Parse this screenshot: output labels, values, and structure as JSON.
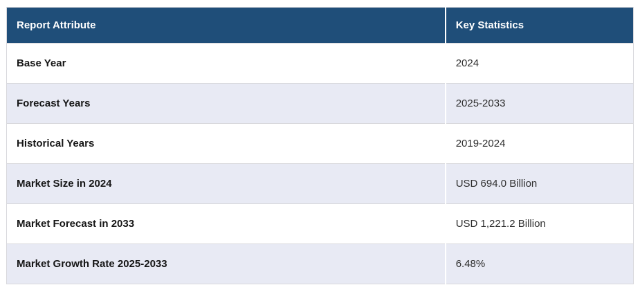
{
  "table": {
    "columns": [
      {
        "label": "Report Attribute"
      },
      {
        "label": "Key Statistics"
      }
    ],
    "rows": [
      {
        "attribute": "Base Year",
        "value": "2024"
      },
      {
        "attribute": "Forecast Years",
        "value": "2025-2033"
      },
      {
        "attribute": "Historical Years",
        "value": "2019-2024"
      },
      {
        "attribute": "Market Size in 2024",
        "value": "USD 694.0 Billion"
      },
      {
        "attribute": "Market Forecast in 2033",
        "value": "USD 1,221.2 Billion"
      },
      {
        "attribute": "Market Growth Rate 2025-2033",
        "value": "6.48%"
      }
    ],
    "colors": {
      "header_bg": "#1F4E79",
      "header_text": "#FFFFFF",
      "row_bg": "#FFFFFF",
      "row_alt_bg": "#E8EAF4",
      "border": "#D8D8DC",
      "attr_text": "#161616",
      "value_text": "#2E2E2E"
    }
  }
}
